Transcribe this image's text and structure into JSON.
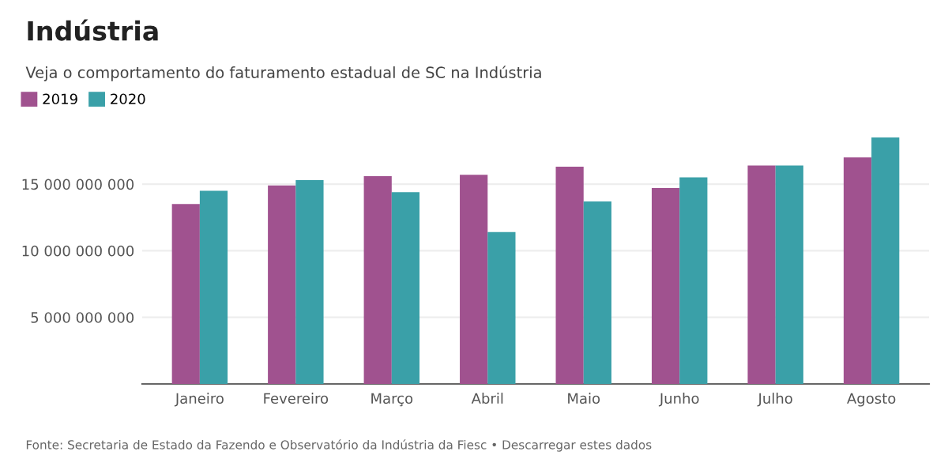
{
  "chart_data": {
    "type": "bar",
    "title": "Indústria",
    "subtitle": "Veja o comportamento do faturamento estadual de SC na Indústria",
    "categories": [
      "Janeiro",
      "Fevereiro",
      "Março",
      "Abril",
      "Maio",
      "Junho",
      "Julho",
      "Agosto"
    ],
    "series": [
      {
        "name": "2019",
        "color": "#a0528f",
        "values": [
          13500000000,
          14900000000,
          15600000000,
          15700000000,
          16300000000,
          14700000000,
          16400000000,
          17000000000
        ]
      },
      {
        "name": "2020",
        "color": "#3aa0a8",
        "values": [
          14500000000,
          15300000000,
          14400000000,
          11400000000,
          13700000000,
          15500000000,
          16400000000,
          18500000000
        ]
      }
    ],
    "ylim": [
      0,
      18500000000
    ],
    "yticks": [
      {
        "value": 5000000000,
        "label": "5 000 000 000"
      },
      {
        "value": 10000000000,
        "label": "10 000 000 000"
      },
      {
        "value": 15000000000,
        "label": "15 000 000 000"
      }
    ],
    "grid": "y",
    "legend": "top left",
    "annotations": [
      "Fonte: Secretaria de Estado da Fazendo e Observatório da Indústria da Fiesc • Descarregar estes dados"
    ]
  }
}
